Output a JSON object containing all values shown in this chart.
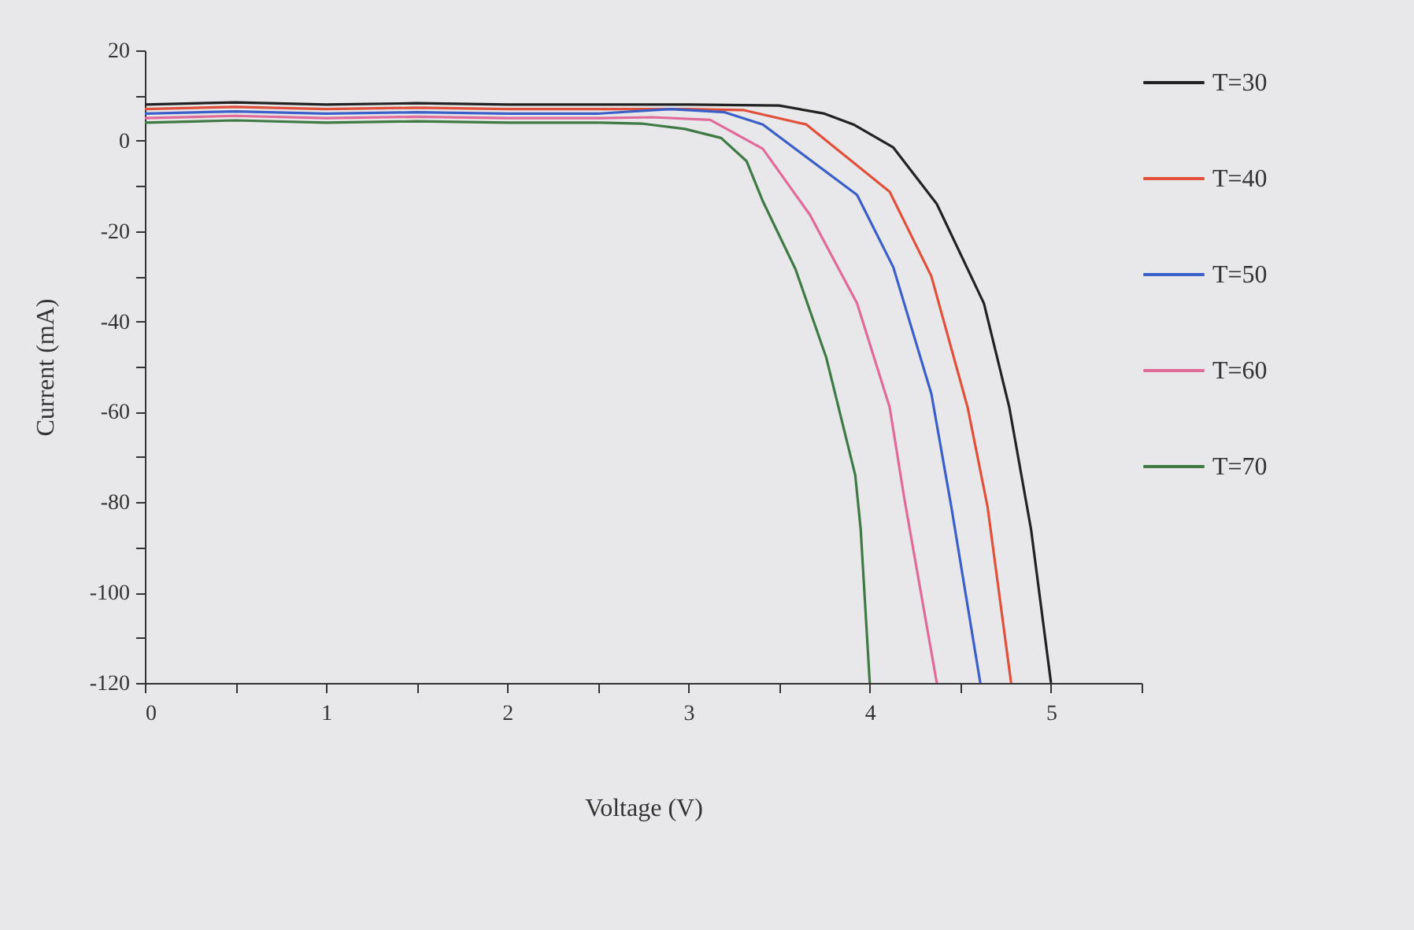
{
  "chart_data": {
    "type": "line",
    "xlabel": "Voltage (V)",
    "ylabel": "Current (mA)",
    "xlim": [
      0,
      5.5
    ],
    "ylim": [
      -120,
      20
    ],
    "xticks": [
      0,
      {
        "value": 0.5,
        "label": null
      },
      1,
      {
        "value": 1.5,
        "label": null
      },
      2,
      {
        "value": 2.5,
        "label": null
      },
      3,
      {
        "value": 3.5,
        "label": null
      },
      4,
      {
        "value": 4.5,
        "label": null
      },
      5,
      {
        "value": 5.5,
        "label": null
      }
    ],
    "yticks": [
      -120,
      {
        "value": -110,
        "label": null
      },
      -100,
      {
        "value": -90,
        "label": null
      },
      -80,
      {
        "value": -70,
        "label": null
      },
      -60,
      {
        "value": -50,
        "label": null
      },
      -40,
      {
        "value": -30,
        "label": null
      },
      -20,
      {
        "value": -10,
        "label": null
      },
      0,
      {
        "value": 10,
        "label": null
      },
      20
    ],
    "grid": false,
    "legend": "right",
    "line_style": "solid",
    "marker": "none",
    "series": [
      {
        "name": "T=30",
        "color": "#222222",
        "x": [
          0,
          0.5,
          1,
          1.5,
          2,
          2.5,
          3,
          3.5,
          3.75,
          3.91,
          4.13,
          4.37,
          4.63,
          4.77,
          4.89,
          5.0
        ],
        "values": [
          8,
          8.5,
          8,
          8.3,
          8,
          8,
          8,
          7.8,
          6,
          3.6,
          -1.5,
          -14,
          -36,
          -59,
          -86,
          -120
        ]
      },
      {
        "name": "T=40",
        "color": "#e0503a",
        "x": [
          0,
          0.5,
          1,
          1.5,
          2,
          2.5,
          3,
          3.3,
          3.65,
          4.11,
          4.34,
          4.54,
          4.65,
          4.78
        ],
        "values": [
          7,
          7.5,
          7,
          7.3,
          7,
          7,
          7,
          6.8,
          3.6,
          -11.3,
          -30,
          -59,
          -81,
          -120
        ]
      },
      {
        "name": "T=50",
        "color": "#3a5fc8",
        "x": [
          0,
          0.5,
          1,
          1.5,
          2,
          2.5,
          2.9,
          3.2,
          3.41,
          3.93,
          4.13,
          4.34,
          4.45,
          4.61
        ],
        "values": [
          6,
          6.5,
          6,
          6.3,
          6,
          6,
          7,
          6.3,
          3.6,
          -12,
          -28,
          -56,
          -81,
          -120
        ]
      },
      {
        "name": "T=60",
        "color": "#e06a9a",
        "x": [
          0,
          0.5,
          1,
          1.5,
          2,
          2.5,
          2.8,
          3.12,
          3.41,
          3.67,
          3.93,
          4.11,
          4.19,
          4.37
        ],
        "values": [
          5,
          5.5,
          5,
          5.3,
          5,
          5,
          5.2,
          4.6,
          -1.8,
          -16.4,
          -36,
          -59,
          -79,
          -120
        ]
      },
      {
        "name": "T=70",
        "color": "#3f7a45",
        "x": [
          0,
          0.5,
          1,
          1.5,
          2,
          2.5,
          2.74,
          2.98,
          3.18,
          3.32,
          3.41,
          3.59,
          3.76,
          3.92,
          3.95,
          4.0
        ],
        "values": [
          4,
          4.5,
          4,
          4.3,
          4,
          4,
          3.8,
          2.6,
          0.6,
          -4.5,
          -13.4,
          -28.4,
          -48,
          -74,
          -86,
          -120
        ]
      }
    ]
  }
}
